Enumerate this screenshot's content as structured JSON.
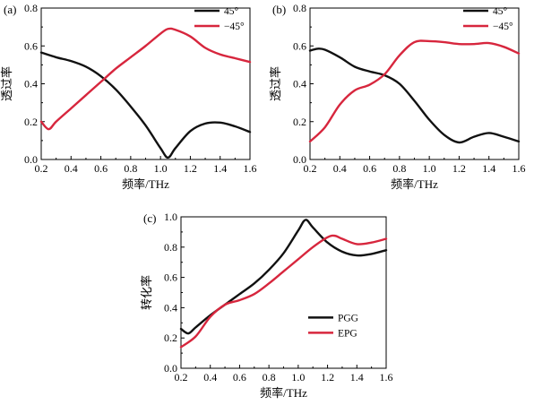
{
  "chart_data": [
    {
      "type": "line",
      "panel_label": "(a)",
      "xlabel": "频率/THz",
      "ylabel": "透过率",
      "xlim": [
        0.2,
        1.6
      ],
      "ylim": [
        0.0,
        0.8
      ],
      "xticks": [
        "0.2",
        "0.4",
        "0.6",
        "0.8",
        "1.0",
        "1.2",
        "1.4",
        "1.6"
      ],
      "yticks": [
        "0.0",
        "0.2",
        "0.4",
        "0.6",
        "0.8"
      ],
      "legend_position": "top-right",
      "grid": false,
      "series": [
        {
          "name": "45°",
          "color": "#111111",
          "x": [
            0.2,
            0.3,
            0.4,
            0.5,
            0.6,
            0.7,
            0.8,
            0.9,
            1.0,
            1.05,
            1.1,
            1.2,
            1.3,
            1.4,
            1.5,
            1.6
          ],
          "y": [
            0.565,
            0.54,
            0.52,
            0.49,
            0.44,
            0.37,
            0.28,
            0.18,
            0.06,
            0.01,
            0.06,
            0.15,
            0.19,
            0.195,
            0.175,
            0.145
          ]
        },
        {
          "name": "−45°",
          "color": "#d7263d",
          "x": [
            0.2,
            0.25,
            0.3,
            0.4,
            0.5,
            0.6,
            0.7,
            0.8,
            0.9,
            1.0,
            1.05,
            1.1,
            1.2,
            1.3,
            1.4,
            1.5,
            1.6
          ],
          "y": [
            0.2,
            0.16,
            0.2,
            0.27,
            0.34,
            0.41,
            0.48,
            0.54,
            0.6,
            0.665,
            0.69,
            0.685,
            0.65,
            0.59,
            0.555,
            0.535,
            0.515
          ]
        }
      ]
    },
    {
      "type": "line",
      "panel_label": "(b)",
      "xlabel": "频率/THz",
      "ylabel": "透过率",
      "xlim": [
        0.2,
        1.6
      ],
      "ylim": [
        0.0,
        0.8
      ],
      "xticks": [
        "0.2",
        "0.4",
        "0.6",
        "0.8",
        "1.0",
        "1.2",
        "1.4",
        "1.6"
      ],
      "yticks": [
        "0.0",
        "0.2",
        "0.4",
        "0.6",
        "0.8"
      ],
      "legend_position": "top-right",
      "grid": false,
      "series": [
        {
          "name": "45°",
          "color": "#111111",
          "x": [
            0.2,
            0.25,
            0.3,
            0.4,
            0.5,
            0.6,
            0.7,
            0.8,
            0.9,
            1.0,
            1.1,
            1.2,
            1.3,
            1.4,
            1.5,
            1.6
          ],
          "y": [
            0.575,
            0.585,
            0.58,
            0.54,
            0.49,
            0.465,
            0.445,
            0.4,
            0.31,
            0.21,
            0.13,
            0.09,
            0.12,
            0.14,
            0.12,
            0.095
          ]
        },
        {
          "name": "−45°",
          "color": "#d7263d",
          "x": [
            0.2,
            0.3,
            0.4,
            0.5,
            0.6,
            0.7,
            0.8,
            0.9,
            1.0,
            1.1,
            1.2,
            1.3,
            1.4,
            1.5,
            1.6
          ],
          "y": [
            0.095,
            0.17,
            0.29,
            0.365,
            0.395,
            0.45,
            0.55,
            0.62,
            0.625,
            0.62,
            0.61,
            0.61,
            0.615,
            0.595,
            0.56
          ]
        }
      ]
    },
    {
      "type": "line",
      "panel_label": "(c)",
      "xlabel": "频率/THz",
      "ylabel": "转化率",
      "xlim": [
        0.2,
        1.6
      ],
      "ylim": [
        0.0,
        1.0
      ],
      "xticks": [
        "0.2",
        "0.4",
        "0.6",
        "0.8",
        "1.0",
        "1.2",
        "1.4",
        "1.6"
      ],
      "yticks": [
        "0.0",
        "0.2",
        "0.4",
        "0.6",
        "0.8",
        "1.0"
      ],
      "legend_position": "bottom-right",
      "grid": false,
      "series": [
        {
          "name": "PGG",
          "color": "#111111",
          "x": [
            0.2,
            0.25,
            0.3,
            0.4,
            0.5,
            0.6,
            0.7,
            0.8,
            0.9,
            1.0,
            1.05,
            1.1,
            1.2,
            1.3,
            1.4,
            1.5,
            1.6
          ],
          "y": [
            0.26,
            0.23,
            0.27,
            0.35,
            0.42,
            0.49,
            0.56,
            0.65,
            0.76,
            0.91,
            0.98,
            0.93,
            0.83,
            0.77,
            0.745,
            0.755,
            0.78
          ]
        },
        {
          "name": "EPG",
          "color": "#d7263d",
          "x": [
            0.2,
            0.3,
            0.4,
            0.5,
            0.6,
            0.7,
            0.8,
            0.9,
            1.0,
            1.1,
            1.2,
            1.25,
            1.3,
            1.4,
            1.5,
            1.6
          ],
          "y": [
            0.14,
            0.21,
            0.34,
            0.42,
            0.45,
            0.49,
            0.56,
            0.64,
            0.72,
            0.8,
            0.865,
            0.875,
            0.855,
            0.82,
            0.83,
            0.855
          ]
        }
      ]
    }
  ]
}
